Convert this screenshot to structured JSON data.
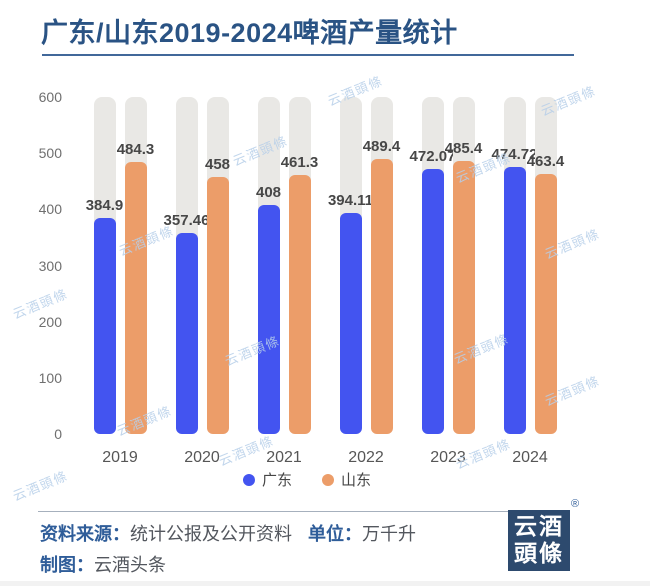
{
  "title": "广东/山东2019-2024啤酒产量统计",
  "chart_data": {
    "type": "bar",
    "title": "广东/山东2019-2024啤酒产量统计",
    "categories": [
      "2019",
      "2020",
      "2021",
      "2022",
      "2023",
      "2024"
    ],
    "series": [
      {
        "name": "广东",
        "color": "#4354f0",
        "values": [
          384.9,
          357.46,
          408,
          394.11,
          472.07,
          474.72
        ]
      },
      {
        "name": "山东",
        "color": "#ec9d69",
        "values": [
          484.3,
          458,
          461.3,
          489.4,
          485.4,
          463.4
        ]
      }
    ],
    "xlabel": "",
    "ylabel": "",
    "ylim": [
      0,
      600
    ],
    "yticks": [
      0,
      100,
      200,
      300,
      400,
      500,
      600
    ],
    "grid": false,
    "legend_position": "bottom",
    "background_bar_color": "#e9e8e5",
    "unit": "万千升"
  },
  "watermark": {
    "text": "云酒頭條",
    "color": "#b7cfe9"
  },
  "footer": {
    "source_label": "资料来源：",
    "source_value": "统计公报及公开资料",
    "unit_label": "单位：",
    "unit_value": "万千升",
    "credit_label": "制图：",
    "credit_value": "云酒头条",
    "logo_line1": "云酒",
    "logo_line2": "頭條",
    "registered_mark": "®"
  },
  "colors": {
    "title_blue": "#2a5384",
    "divider_blue": "#41689a",
    "footer_label_blue": "#2f5d99",
    "logo_navy": "#2d4a6e",
    "guangdong_blue": "#4354f0",
    "shandong_orange": "#ec9d69",
    "track_gray": "#e9e8e5"
  }
}
